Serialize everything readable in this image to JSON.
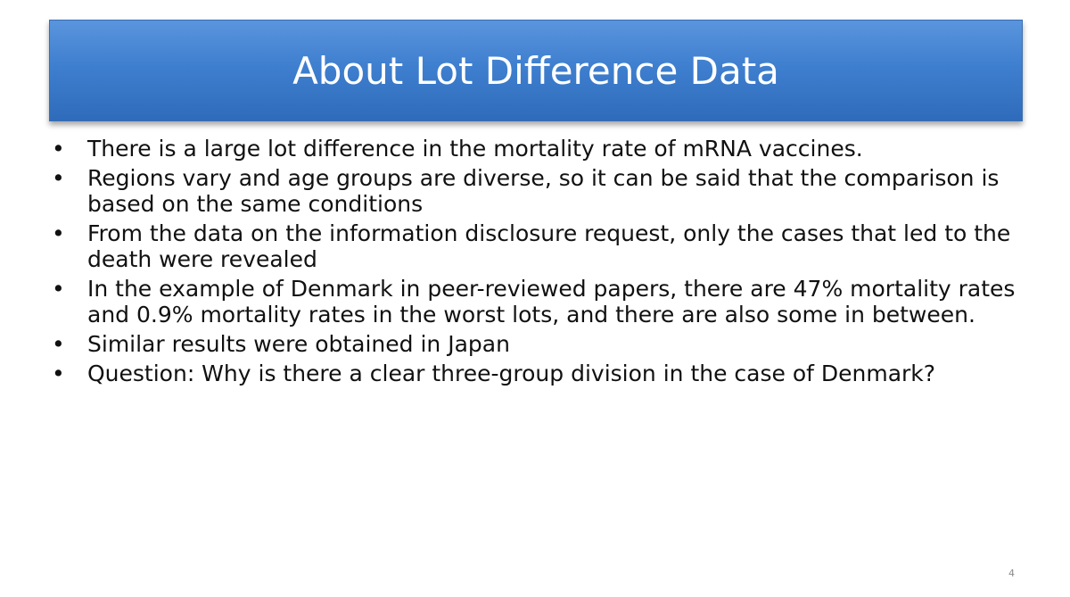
{
  "slide": {
    "title": "About Lot Difference Data",
    "bullets": [
      "There is a large lot difference in the mortality rate of mRNA vaccines.",
      "Regions vary and age groups are diverse, so it can be said that the comparison is based on the same conditions",
      "From the data on the information disclosure request, only the cases that led to the death were revealed",
      "In the example of Denmark in peer-reviewed papers, there are 47% mortality rates and 0.9% mortality rates in the worst lots, and there are also some in between.",
      "Similar results were obtained in Japan",
      "Question: Why is there a clear three-group division in the case of Denmark?"
    ],
    "bullet_symbol": "•",
    "page_number": "4"
  },
  "colors": {
    "banner": "#3f7fcf",
    "title_text": "#ffffff",
    "body_text": "#111111"
  }
}
